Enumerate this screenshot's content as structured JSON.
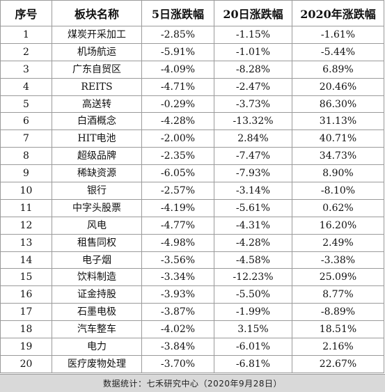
{
  "table": {
    "headers": [
      "序号",
      "板块名称",
      "5日涨跌幅",
      "20日涨跌幅",
      "2020年涨跌幅"
    ],
    "rows": [
      {
        "idx": "1",
        "name": "煤炭开采加工",
        "d5": "-2.85%",
        "d20": "-1.15%",
        "y2020": "-1.61%"
      },
      {
        "idx": "2",
        "name": "机场航运",
        "d5": "-5.91%",
        "d20": "-1.01%",
        "y2020": "-5.44%"
      },
      {
        "idx": "3",
        "name": "广东自贸区",
        "d5": "-4.09%",
        "d20": "-8.28%",
        "y2020": "6.89%"
      },
      {
        "idx": "4",
        "name": "REITS",
        "d5": "-4.71%",
        "d20": "-2.47%",
        "y2020": "20.46%"
      },
      {
        "idx": "5",
        "name": "高送转",
        "d5": "-0.29%",
        "d20": "-3.73%",
        "y2020": "86.30%"
      },
      {
        "idx": "6",
        "name": "白酒概念",
        "d5": "-4.28%",
        "d20": "-13.32%",
        "y2020": "31.13%"
      },
      {
        "idx": "7",
        "name": "HIT电池",
        "d5": "-2.00%",
        "d20": "2.84%",
        "y2020": "40.71%"
      },
      {
        "idx": "8",
        "name": "超级品牌",
        "d5": "-2.35%",
        "d20": "-7.47%",
        "y2020": "34.73%"
      },
      {
        "idx": "9",
        "name": "稀缺资源",
        "d5": "-6.05%",
        "d20": "-7.93%",
        "y2020": "8.90%"
      },
      {
        "idx": "10",
        "name": "银行",
        "d5": "-2.57%",
        "d20": "-3.14%",
        "y2020": "-8.10%"
      },
      {
        "idx": "11",
        "name": "中字头股票",
        "d5": "-4.19%",
        "d20": "-5.61%",
        "y2020": "0.62%"
      },
      {
        "idx": "12",
        "name": "风电",
        "d5": "-4.77%",
        "d20": "-4.31%",
        "y2020": "16.20%"
      },
      {
        "idx": "13",
        "name": "租售同权",
        "d5": "-4.98%",
        "d20": "-4.28%",
        "y2020": "2.49%"
      },
      {
        "idx": "14",
        "name": "电子烟",
        "d5": "-3.56%",
        "d20": "-4.58%",
        "y2020": "-3.38%"
      },
      {
        "idx": "15",
        "name": "饮料制造",
        "d5": "-3.34%",
        "d20": "-12.23%",
        "y2020": "25.09%"
      },
      {
        "idx": "16",
        "name": "证金持股",
        "d5": "-3.93%",
        "d20": "-5.50%",
        "y2020": "8.77%"
      },
      {
        "idx": "17",
        "name": "石墨电极",
        "d5": "-3.87%",
        "d20": "-1.99%",
        "y2020": "-8.89%"
      },
      {
        "idx": "18",
        "name": "汽车整车",
        "d5": "-4.02%",
        "d20": "3.15%",
        "y2020": "18.51%"
      },
      {
        "idx": "19",
        "name": "电力",
        "d5": "-3.84%",
        "d20": "-6.01%",
        "y2020": "2.16%"
      },
      {
        "idx": "20",
        "name": "医疗废物处理",
        "d5": "-3.70%",
        "d20": "-6.81%",
        "y2020": "22.67%"
      }
    ]
  },
  "footer": {
    "source": "数据统计：七禾研究中心（2020年9月28日）"
  }
}
